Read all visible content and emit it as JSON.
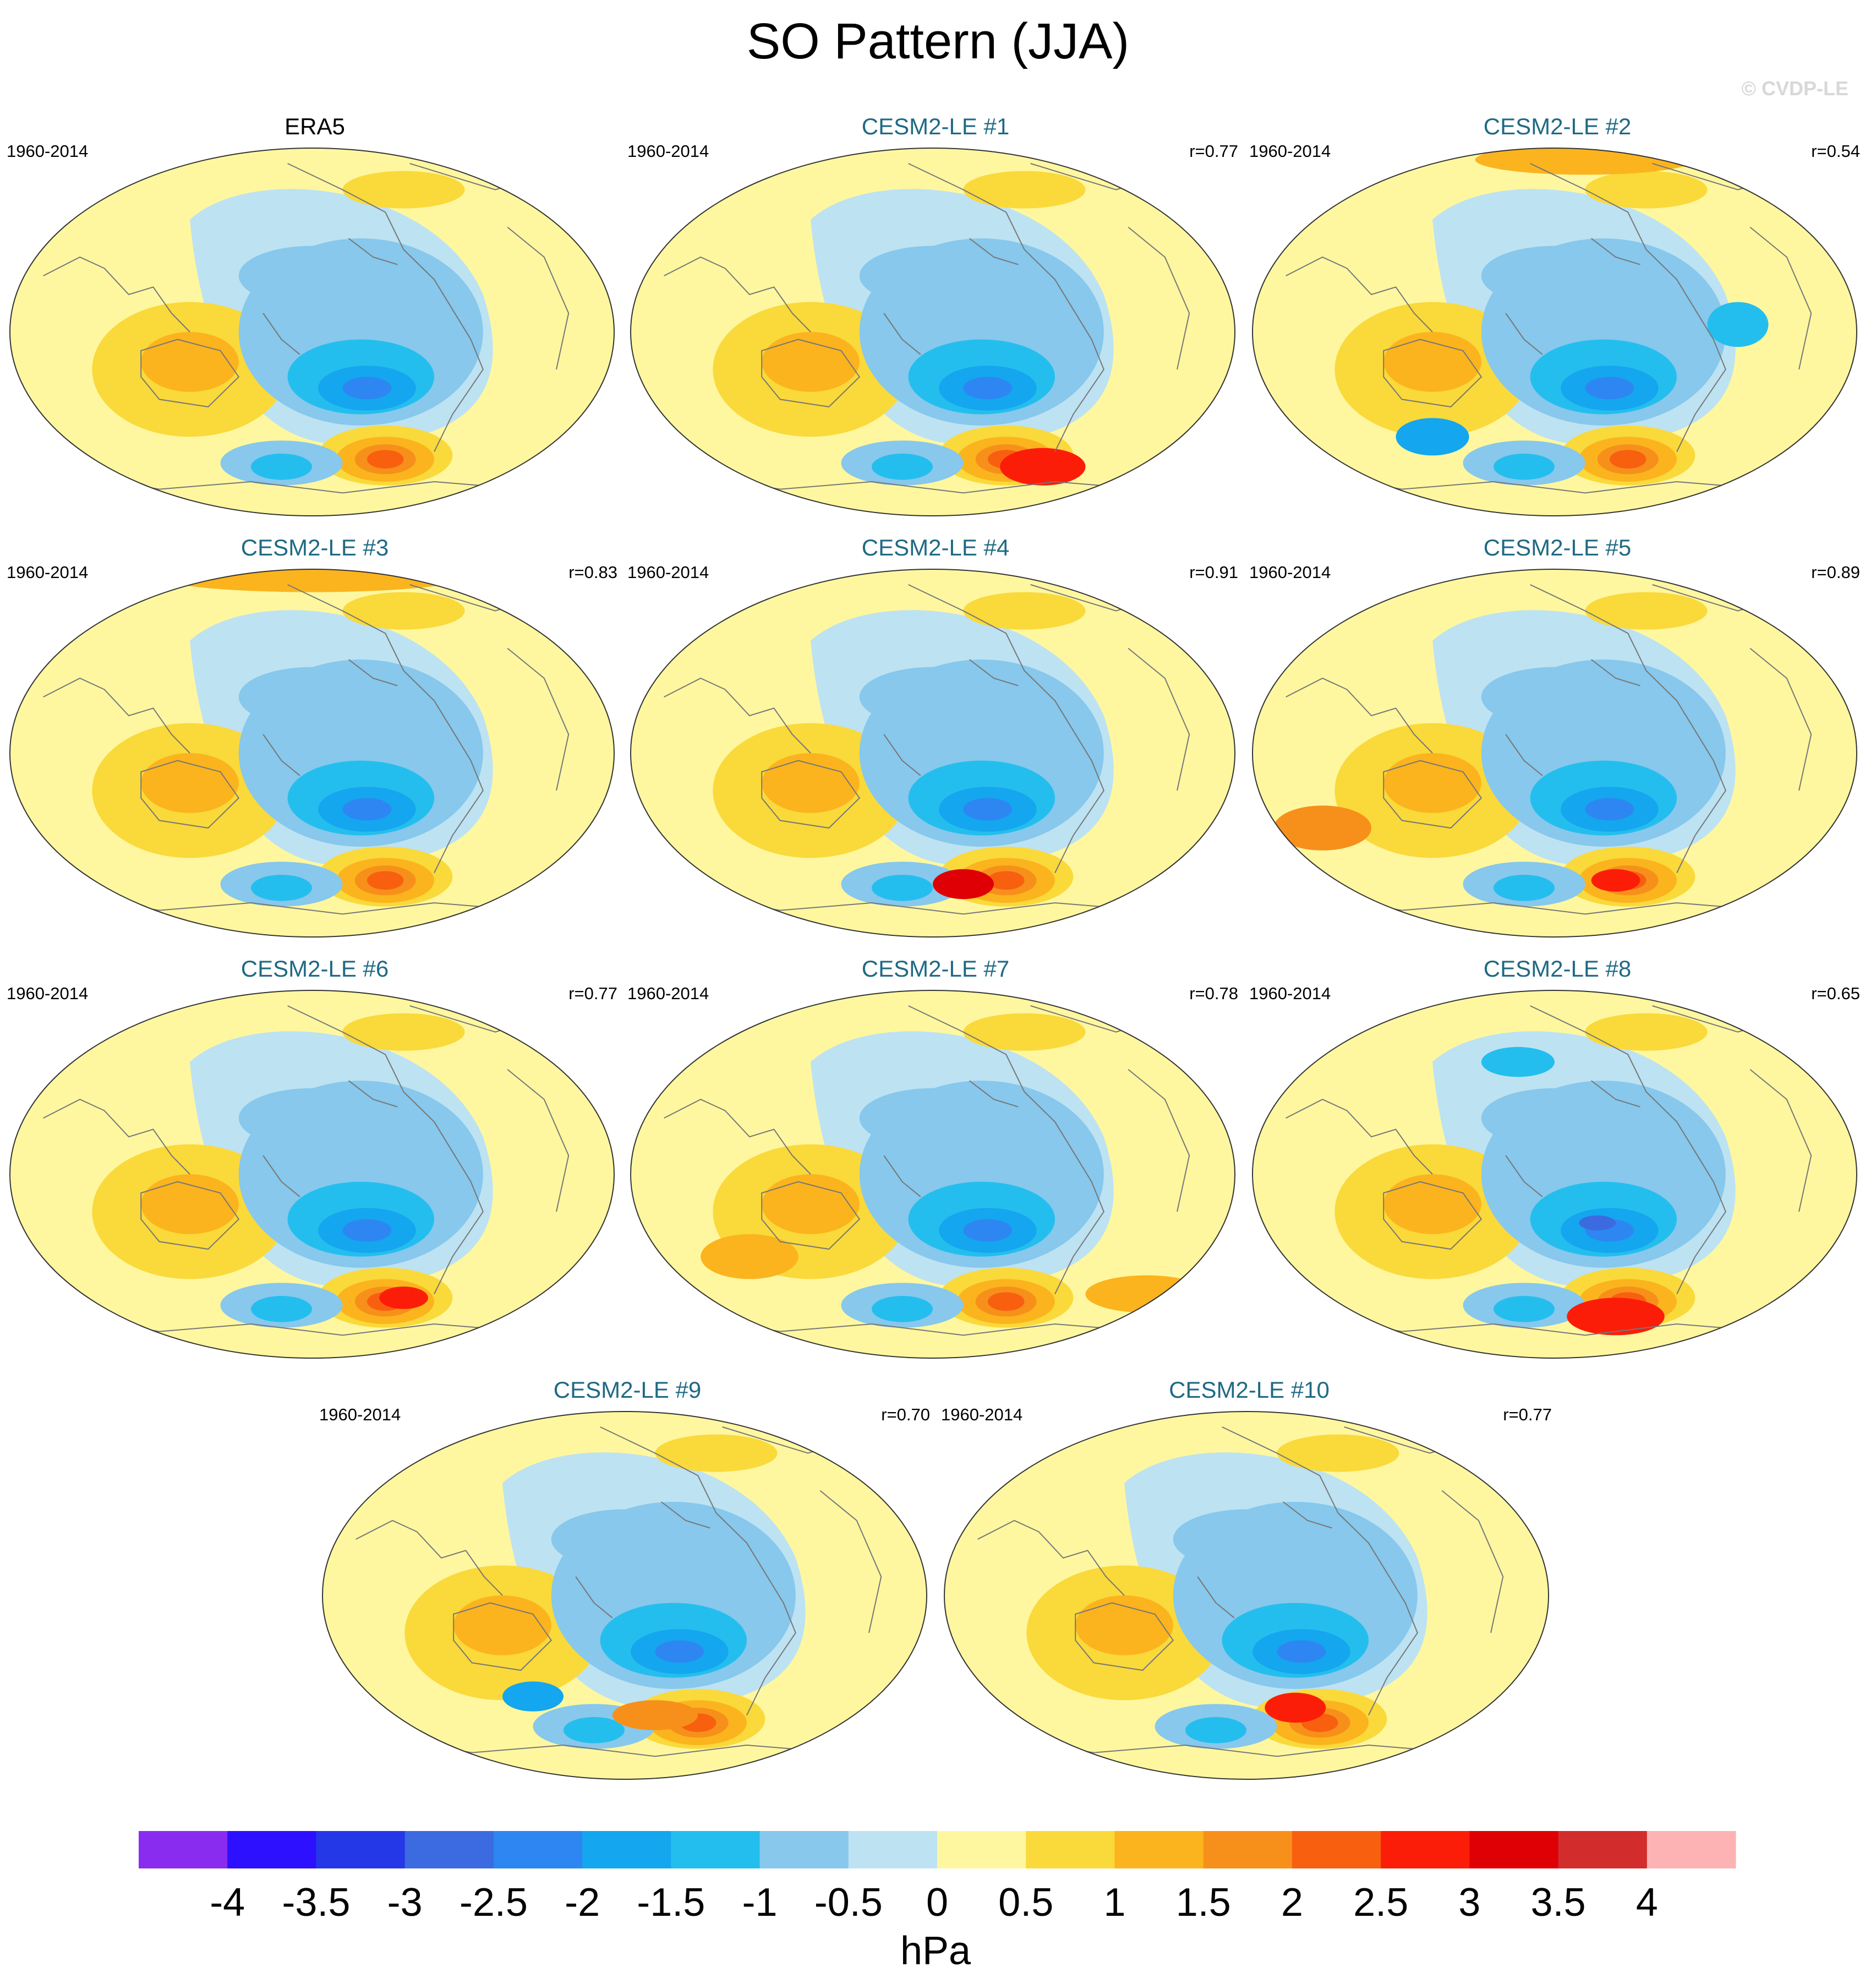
{
  "title": "SO Pattern (JJA)",
  "watermark": "© CVDP-LE",
  "units": "hPa",
  "colors": {
    "model_title": "#1f6a84",
    "coastline": "#777777",
    "outline": "#333333"
  },
  "chart_data": {
    "type": "contour-map-panels",
    "variable": "SO Pattern (JJA)",
    "units": "hPa",
    "panels": [
      {
        "name": "ERA5",
        "period": "1960-2014",
        "r": "",
        "is_obs": true
      },
      {
        "name": "CESM2-LE #1",
        "period": "1960-2014",
        "r": "r=0.77",
        "is_obs": false
      },
      {
        "name": "CESM2-LE #2",
        "period": "1960-2014",
        "r": "r=0.54",
        "is_obs": false
      },
      {
        "name": "CESM2-LE #3",
        "period": "1960-2014",
        "r": "r=0.83",
        "is_obs": false
      },
      {
        "name": "CESM2-LE #4",
        "period": "1960-2014",
        "r": "r=0.91",
        "is_obs": false
      },
      {
        "name": "CESM2-LE #5",
        "period": "1960-2014",
        "r": "r=0.89",
        "is_obs": false
      },
      {
        "name": "CESM2-LE #6",
        "period": "1960-2014",
        "r": "r=0.77",
        "is_obs": false
      },
      {
        "name": "CESM2-LE #7",
        "period": "1960-2014",
        "r": "r=0.78",
        "is_obs": false
      },
      {
        "name": "CESM2-LE #8",
        "period": "1960-2014",
        "r": "r=0.65",
        "is_obs": false
      },
      {
        "name": "CESM2-LE #9",
        "period": "1960-2014",
        "r": "r=0.70",
        "is_obs": false
      },
      {
        "name": "CESM2-LE #10",
        "period": "1960-2014",
        "r": "r=0.77",
        "is_obs": false
      }
    ],
    "colorbar": {
      "levels": [
        "-4",
        "-3.5",
        "-3",
        "-2.5",
        "-2",
        "-1.5",
        "-1",
        "-0.5",
        "0",
        "0.5",
        "1",
        "1.5",
        "2",
        "2.5",
        "3",
        "3.5",
        "4"
      ],
      "colors": [
        "#8a2cf0",
        "#2d10ff",
        "#2538e8",
        "#3c6ae0",
        "#2e86f2",
        "#14a6ee",
        "#24beee",
        "#87c8ec",
        "#bde2f2",
        "#fef7a0",
        "#fad93a",
        "#fbb41e",
        "#f7901a",
        "#f86010",
        "#fc1d08",
        "#de0004",
        "#d32c2c",
        "#fdb3b3"
      ],
      "label": "hPa"
    }
  }
}
